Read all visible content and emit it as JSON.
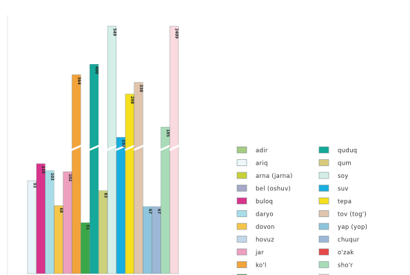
{
  "chart_data": {
    "type": "bar",
    "title": "",
    "xlabel": "",
    "ylabel": "",
    "broken_axis": true,
    "grid": false,
    "legend_position": "right",
    "bars": [
      {
        "category": "ariq",
        "value_label": "93",
        "color": "#e8f4f8"
      },
      {
        "category": "buloq",
        "value_label": "110",
        "color": "#d8348c"
      },
      {
        "category": "daryo",
        "value_label": "103",
        "color": "#a8dde8"
      },
      {
        "category": "dovon",
        "value_label": "68",
        "color": "#f6c64a"
      },
      {
        "category": "jar",
        "value_label": "102",
        "color": "#eda0bd"
      },
      {
        "category": "ko'l",
        "value_label": "364",
        "color": "#f2a33a"
      },
      {
        "category": "qoq",
        "value_label": "51",
        "color": "#3aa848"
      },
      {
        "category": "quduq",
        "value_label": "400",
        "color": "#14a99a"
      },
      {
        "category": "qum",
        "value_label": "83",
        "color": "#cdd17a"
      },
      {
        "category": "soy",
        "value_label": "549",
        "color": "#d4efe8"
      },
      {
        "category": "suv",
        "value_label": "150",
        "color": "#18aee0"
      },
      {
        "category": "tepa",
        "value_label": "298",
        "color": "#f5df1e"
      },
      {
        "category": "tov (tog')",
        "value_label": "338",
        "color": "#e0c4ac"
      },
      {
        "category": "yap (yop)",
        "value_label": "67",
        "color": "#8ec5dc"
      },
      {
        "category": "chuqur",
        "value_label": "67",
        "color": "#9cb8d6"
      },
      {
        "category": "sho'r",
        "value_label": "185",
        "color": "#a8dcb8"
      },
      {
        "category": "boshqa so'zlar",
        "value_label": "2409",
        "color": "#fadadf"
      }
    ],
    "legend": [
      {
        "label": "adir",
        "color": "#a6cc84"
      },
      {
        "label": "ariq",
        "color": "#eef7fa"
      },
      {
        "label": "arna (jarna)",
        "color": "#c9d138"
      },
      {
        "label": "bel (oshuv)",
        "color": "#a6a8c8"
      },
      {
        "label": "buloq",
        "color": "#d8348c"
      },
      {
        "label": "daryo",
        "color": "#a8dde8"
      },
      {
        "label": "dovon",
        "color": "#f6c64a"
      },
      {
        "label": "hovuz",
        "color": "#c4d6ea"
      },
      {
        "label": "jar",
        "color": "#eda0bd"
      },
      {
        "label": "ko'l",
        "color": "#f2a33a"
      },
      {
        "label": "qoq",
        "color": "#3aa848"
      },
      {
        "label": "quduq",
        "color": "#14a99a"
      },
      {
        "label": "qum",
        "color": "#d8ca7c"
      },
      {
        "label": "soy",
        "color": "#d4efe8"
      },
      {
        "label": "suv",
        "color": "#18aee0"
      },
      {
        "label": "tepa",
        "color": "#f5df1e"
      },
      {
        "label": "tov (tog')",
        "color": "#e0c4ac"
      },
      {
        "label": "yap (yop)",
        "color": "#8ec5dc"
      },
      {
        "label": "chuqur",
        "color": "#9cb8d6"
      },
      {
        "label": "o'zak",
        "color": "#e64848"
      },
      {
        "label": "sho'r",
        "color": "#a8dcb8"
      },
      {
        "label": "boshqa so'zlar",
        "color": "#fadadf"
      }
    ]
  }
}
